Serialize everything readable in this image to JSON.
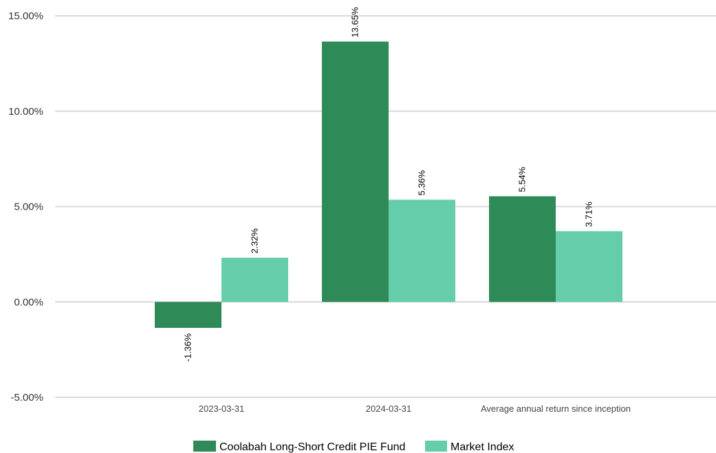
{
  "chart_data": {
    "type": "bar",
    "categories": [
      "2023-03-31",
      "2024-03-31",
      "Average annual return since inception"
    ],
    "series": [
      {
        "name": "Coolabah Long-Short Credit PIE Fund",
        "values": [
          -1.36,
          13.65,
          5.54
        ],
        "labels": [
          "-1.36%",
          "13.65%",
          "5.54%"
        ],
        "color": "#2e8b57"
      },
      {
        "name": "Market Index",
        "values": [
          2.32,
          5.36,
          3.71
        ],
        "labels": [
          "2.32%",
          "5.36%",
          "3.71%"
        ],
        "color": "#66cdaa"
      }
    ],
    "ylim": [
      -5,
      15
    ],
    "yticks": [
      15,
      10,
      5,
      0,
      -5
    ],
    "ytick_labels": [
      "15.00%",
      "10.00%",
      "5.00%",
      "0.00%",
      "-5.00%"
    ],
    "grid": true,
    "legend_position": "bottom-center",
    "title": "",
    "xlabel": "",
    "ylabel": ""
  }
}
